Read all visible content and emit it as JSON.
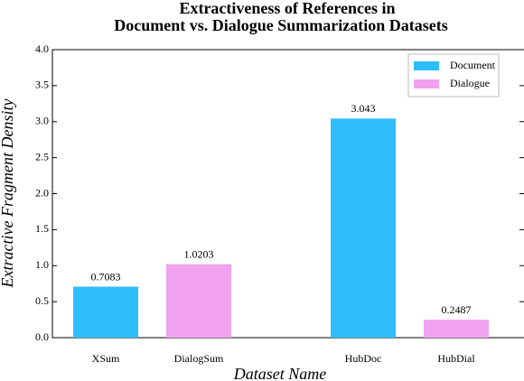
{
  "chart_data": {
    "type": "bar",
    "title": [
      "Extractiveness of References in",
      "Document vs. Dialogue Summarization Datasets"
    ],
    "x_label": "Dataset Name",
    "y_label": "Extractive Fragment Density",
    "categories": [
      "XSum",
      "DialogSum",
      "HubDoc",
      "HubDial"
    ],
    "series": [
      {
        "name": "Document",
        "color": "#2ebdfb",
        "values": [
          0.7083,
          null,
          3.043,
          null
        ]
      },
      {
        "name": "Dialogue",
        "color": "#f0a2ee",
        "values": [
          null,
          1.0203,
          null,
          0.2487
        ]
      }
    ],
    "ylim": [
      0,
      4
    ],
    "yticks": [
      {
        "value": 0,
        "label": "0.0"
      },
      0.5,
      {
        "value": 1,
        "label": "1.0"
      },
      1.5,
      {
        "value": 2,
        "label": "2.0"
      },
      2.5,
      {
        "value": 3,
        "label": "3.0"
      },
      3.5,
      {
        "value": 4,
        "label": "4.0"
      }
    ],
    "legend": "upper right"
  }
}
